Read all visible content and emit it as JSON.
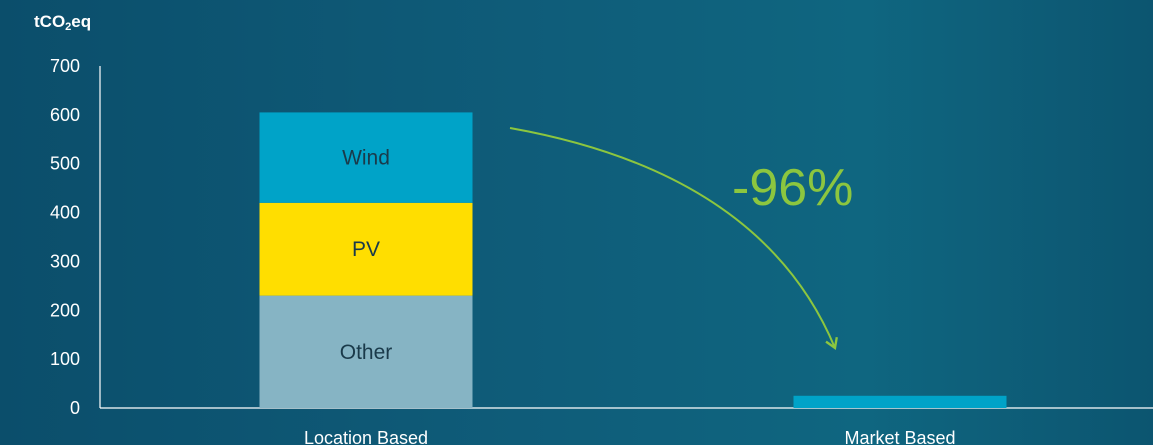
{
  "unit_label": {
    "main": "tCO",
    "sub": "2",
    "suffix": "eq"
  },
  "annotation": {
    "text": "-96%"
  },
  "colors": {
    "axis": "#ffffff",
    "tick_text": "#ffffff",
    "category_text": "#ffffff",
    "segment_text": "#1a3a4a",
    "arrow": "#8cc63f",
    "annotation": "#8cc63f"
  },
  "chart_data": {
    "type": "bar",
    "stacked": true,
    "categories": [
      "Location Based",
      "Market Based"
    ],
    "ylim": [
      0,
      700
    ],
    "yticks": [
      0,
      100,
      200,
      300,
      400,
      500,
      600,
      700
    ],
    "grid": false,
    "series": [
      {
        "name": "Other",
        "values": [
          230,
          0
        ],
        "color": "#86b4c4"
      },
      {
        "name": "PV",
        "values": [
          190,
          0
        ],
        "color": "#ffde00"
      },
      {
        "name": "Wind",
        "values": [
          185,
          25
        ],
        "color": "#00a3c8"
      }
    ],
    "segment_labels": [
      {
        "series": "Other",
        "category": "Location Based",
        "text": "Other"
      },
      {
        "series": "PV",
        "category": "Location Based",
        "text": "PV"
      },
      {
        "series": "Wind",
        "category": "Location Based",
        "text": "Wind"
      }
    ]
  }
}
